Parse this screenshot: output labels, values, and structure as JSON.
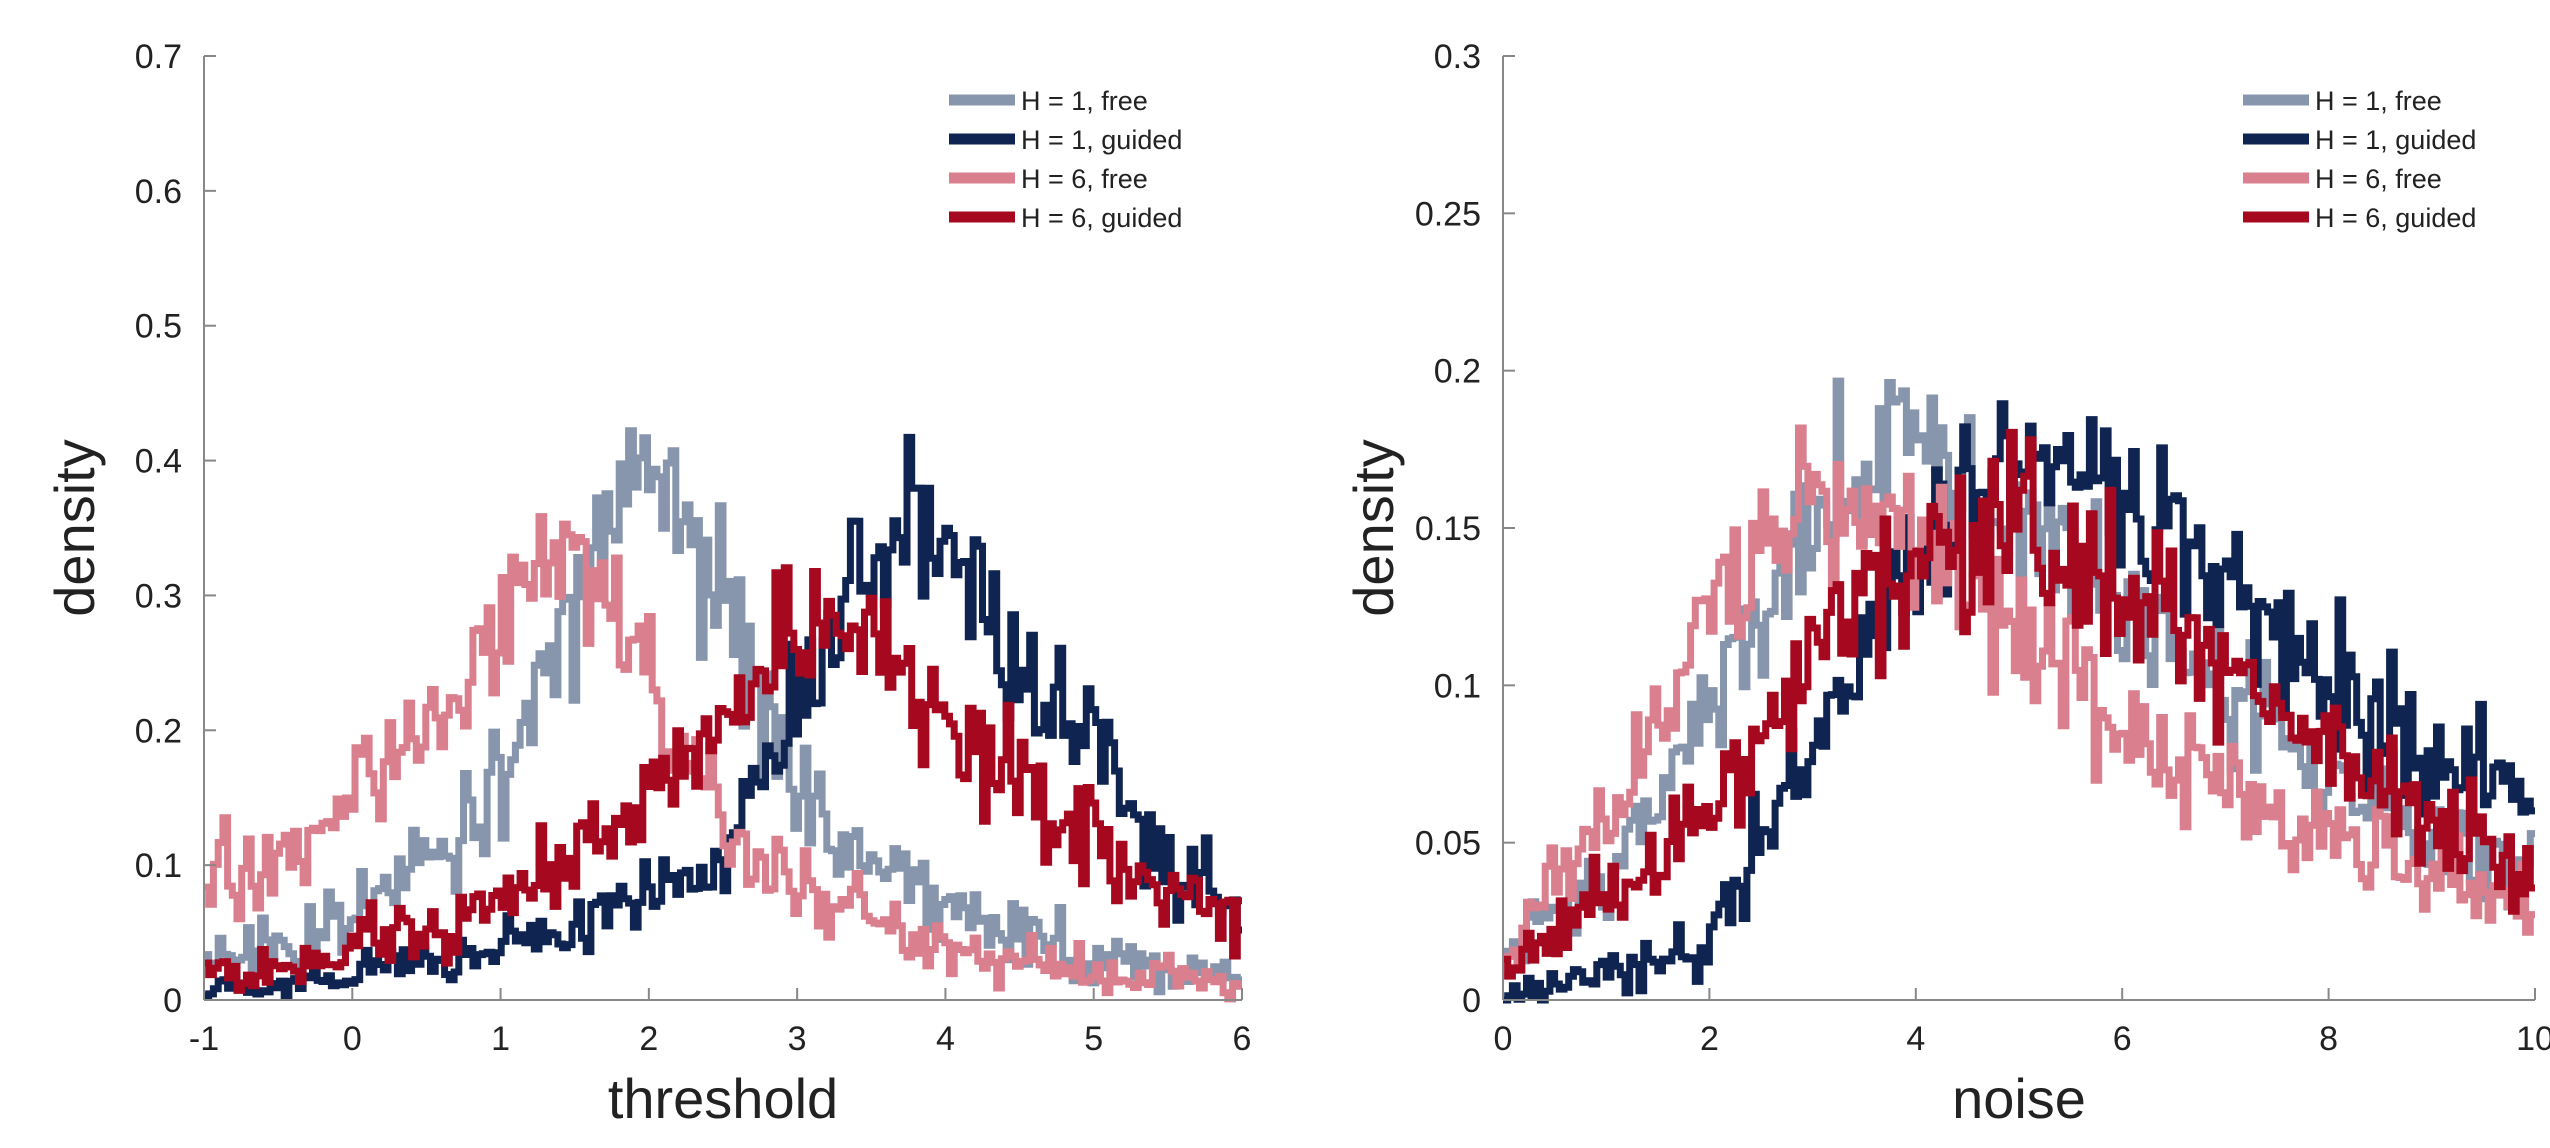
{
  "chart_data": [
    {
      "type": "line",
      "title": "",
      "xlabel": "threshold",
      "ylabel": "density",
      "xlim": [
        -1,
        6
      ],
      "ylim": [
        0,
        0.7
      ],
      "xticks": [
        -1,
        0,
        1,
        2,
        3,
        4,
        5,
        6
      ],
      "xtick_labels": [
        "-1",
        "0",
        "1",
        "2",
        "3",
        "4",
        "5",
        "6"
      ],
      "yticks": [
        0,
        0.1,
        0.2,
        0.3,
        0.4,
        0.5,
        0.6,
        0.7
      ],
      "ytick_labels": [
        "0",
        "0.1",
        "0.2",
        "0.3",
        "0.4",
        "0.5",
        "0.6",
        "0.7"
      ],
      "grid": false,
      "legend_position": "top-right",
      "x": [
        -1.0,
        -0.5,
        0.0,
        0.5,
        1.0,
        1.5,
        2.0,
        2.5,
        3.0,
        3.5,
        4.0,
        4.5,
        5.0,
        5.5,
        6.0
      ],
      "series": [
        {
          "name": "H = 1, free",
          "color": "#8896ad",
          "values": [
            0.03,
            0.04,
            0.06,
            0.1,
            0.16,
            0.3,
            0.41,
            0.3,
            0.15,
            0.1,
            0.07,
            0.05,
            0.03,
            0.02,
            0.02
          ]
        },
        {
          "name": "H = 1, guided",
          "color": "#0f2450",
          "values": [
            0.01,
            0.01,
            0.02,
            0.03,
            0.04,
            0.05,
            0.08,
            0.11,
            0.22,
            0.33,
            0.33,
            0.26,
            0.19,
            0.11,
            0.06
          ]
        },
        {
          "name": "H = 6, free",
          "color": "#d97f8d",
          "values": [
            0.08,
            0.11,
            0.15,
            0.21,
            0.29,
            0.33,
            0.22,
            0.14,
            0.09,
            0.06,
            0.04,
            0.03,
            0.02,
            0.02,
            0.01
          ]
        },
        {
          "name": "H = 6, guided",
          "color": "#a5081f",
          "values": [
            0.02,
            0.02,
            0.04,
            0.05,
            0.07,
            0.11,
            0.15,
            0.2,
            0.27,
            0.27,
            0.2,
            0.16,
            0.12,
            0.08,
            0.06
          ]
        }
      ]
    },
    {
      "type": "line",
      "title": "",
      "xlabel": "noise",
      "ylabel": "density",
      "xlim": [
        0,
        10
      ],
      "ylim": [
        0,
        0.3
      ],
      "xticks": [
        0,
        2,
        4,
        6,
        8,
        10
      ],
      "xtick_labels": [
        "0",
        "2",
        "4",
        "6",
        "8",
        "10"
      ],
      "yticks": [
        0,
        0.05,
        0.1,
        0.15,
        0.2,
        0.25,
        0.3
      ],
      "ytick_labels": [
        "0",
        "0.05",
        "0.1",
        "0.15",
        "0.2",
        "0.25",
        "0.3"
      ],
      "grid": false,
      "legend_position": "top-right",
      "x": [
        0,
        1,
        2,
        3,
        4,
        5,
        6,
        7,
        8,
        9,
        10
      ],
      "series": [
        {
          "name": "H = 1, free",
          "color": "#8896ad",
          "values": [
            0.01,
            0.04,
            0.09,
            0.15,
            0.18,
            0.15,
            0.12,
            0.1,
            0.07,
            0.05,
            0.04
          ]
        },
        {
          "name": "H = 1, guided",
          "color": "#0f2450",
          "values": [
            0.0,
            0.01,
            0.02,
            0.08,
            0.14,
            0.17,
            0.16,
            0.13,
            0.1,
            0.08,
            0.06
          ]
        },
        {
          "name": "H = 6, free",
          "color": "#d97f8d",
          "values": [
            0.01,
            0.06,
            0.12,
            0.16,
            0.15,
            0.12,
            0.09,
            0.07,
            0.05,
            0.04,
            0.03
          ]
        },
        {
          "name": "H = 6, guided",
          "color": "#a5081f",
          "values": [
            0.01,
            0.03,
            0.06,
            0.11,
            0.14,
            0.15,
            0.13,
            0.11,
            0.08,
            0.06,
            0.04
          ]
        }
      ]
    }
  ]
}
